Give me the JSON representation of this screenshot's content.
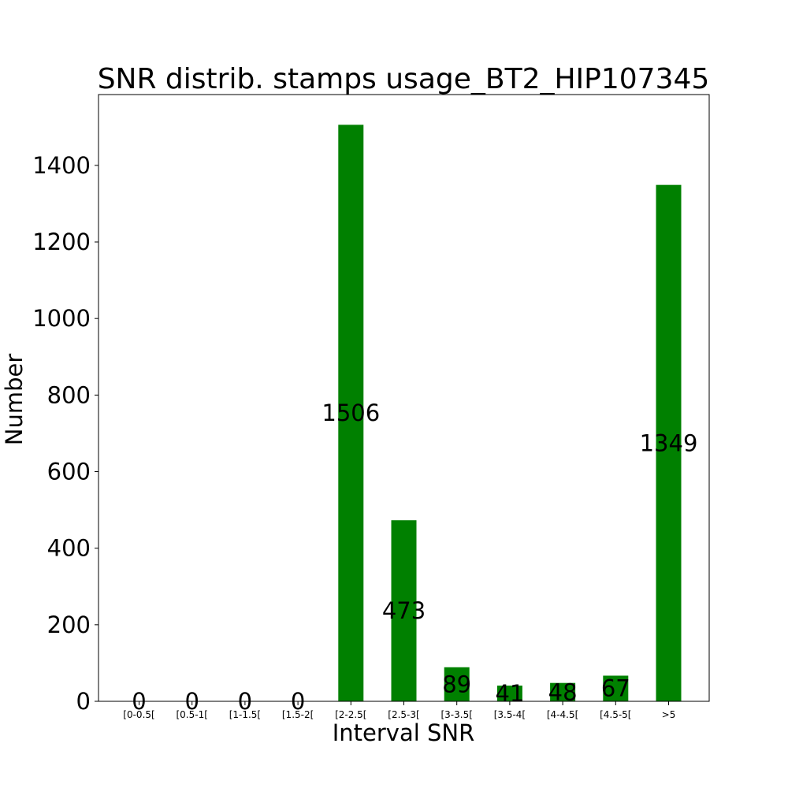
{
  "chart_data": {
    "type": "bar",
    "title": "SNR distrib. stamps usage_BT2_HIP107345",
    "xlabel": "Interval SNR",
    "ylabel": "Number",
    "categories": [
      "[0-0.5[",
      "[0.5-1[",
      "[1-1.5[",
      "[1.5-2[",
      "[2-2.5[",
      "[2.5-3[",
      "[3-3.5[",
      "[3.5-4[",
      "[4-4.5[",
      "[4.5-5[",
      ">5"
    ],
    "values": [
      0,
      0,
      0,
      0,
      1506,
      473,
      89,
      41,
      48,
      67,
      1349
    ],
    "data_labels": [
      "0",
      "0",
      "0",
      "0",
      "1506",
      "473",
      "89",
      "41",
      "48",
      "67",
      "1349"
    ],
    "ylim": [
      0,
      1585
    ],
    "yticks": [
      0,
      200,
      400,
      600,
      800,
      1000,
      1200,
      1400
    ],
    "ytick_labels": [
      "0",
      "200",
      "400",
      "600",
      "800",
      "1000",
      "1200",
      "1400"
    ],
    "bar_color": "#008000",
    "grid": false,
    "legend": "none"
  }
}
